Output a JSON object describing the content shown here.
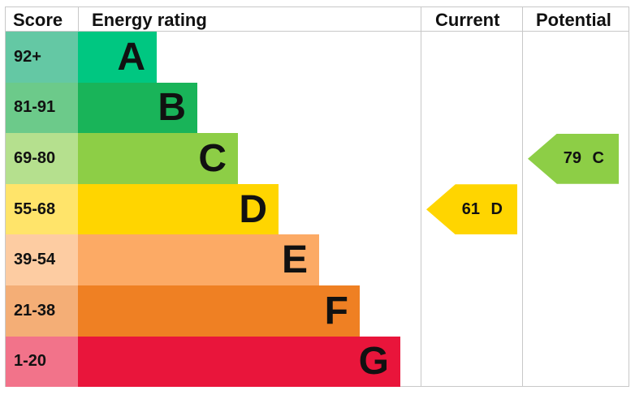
{
  "chart_data": {
    "type": "bar",
    "headers": {
      "score": "Score",
      "rating": "Energy rating",
      "current": "Current",
      "potential": "Potential"
    },
    "bands": [
      {
        "letter": "A",
        "range": "92+",
        "color": "#00c781",
        "score_color": "#64c8a4"
      },
      {
        "letter": "B",
        "range": "81-91",
        "color": "#19b459",
        "score_color": "#6cca8a"
      },
      {
        "letter": "C",
        "range": "69-80",
        "color": "#8dce46",
        "score_color": "#b5e08e"
      },
      {
        "letter": "D",
        "range": "55-68",
        "color": "#ffd500",
        "score_color": "#ffe46a"
      },
      {
        "letter": "E",
        "range": "39-54",
        "color": "#fcaa65",
        "score_color": "#fdcca2"
      },
      {
        "letter": "F",
        "range": "21-38",
        "color": "#ef8023",
        "score_color": "#f4ae76"
      },
      {
        "letter": "G",
        "range": "1-20",
        "color": "#e9153b",
        "score_color": "#f2738a"
      }
    ],
    "current": {
      "value": 61,
      "band": "D",
      "label": "61 D",
      "color": "#ffd500"
    },
    "potential": {
      "value": 79,
      "band": "C",
      "label": "79 C",
      "color": "#8dce46"
    }
  }
}
